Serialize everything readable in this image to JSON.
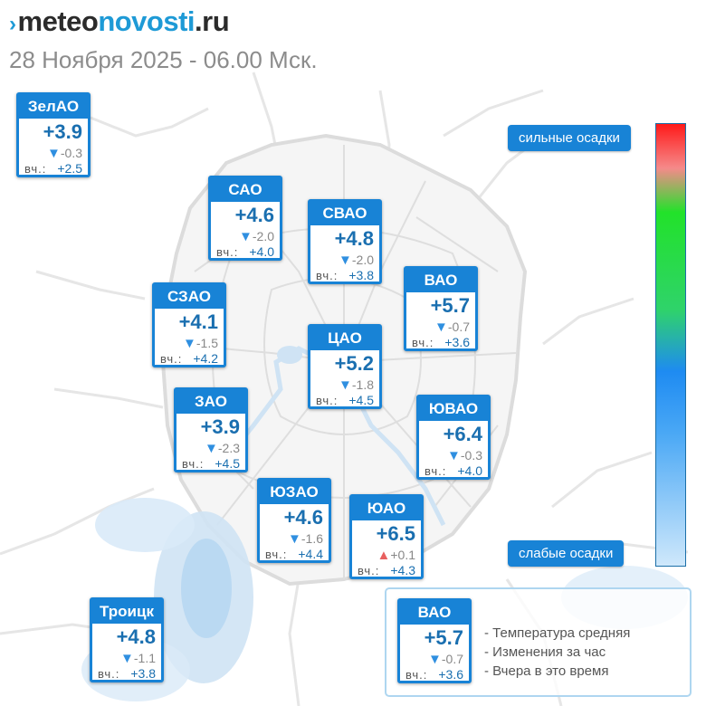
{
  "header": {
    "logo_mark": "›",
    "logo_part1": "meteo",
    "logo_part2": "novosti",
    "logo_part3": ".ru",
    "subtitle": "28 Ноября 2025 - 06.00 Мск."
  },
  "yesterday_label": "вч.:",
  "districts": [
    {
      "name": "ЗелАО",
      "temp": "+3.9",
      "change_arrow": "▼",
      "change": "-0.3",
      "yesterday": "+2.5"
    },
    {
      "name": "САО",
      "temp": "+4.6",
      "change_arrow": "▼",
      "change": "-2.0",
      "yesterday": "+4.0"
    },
    {
      "name": "СВАО",
      "temp": "+4.8",
      "change_arrow": "▼",
      "change": "-2.0",
      "yesterday": "+3.8"
    },
    {
      "name": "ВАО",
      "temp": "+5.7",
      "change_arrow": "▼",
      "change": "-0.7",
      "yesterday": "+3.6"
    },
    {
      "name": "СЗАО",
      "temp": "+4.1",
      "change_arrow": "▼",
      "change": "-1.5",
      "yesterday": "+4.2"
    },
    {
      "name": "ЦАО",
      "temp": "+5.2",
      "change_arrow": "▼",
      "change": "-1.8",
      "yesterday": "+4.5"
    },
    {
      "name": "ЗАО",
      "temp": "+3.9",
      "change_arrow": "▼",
      "change": "-2.3",
      "yesterday": "+4.5"
    },
    {
      "name": "ЮВАО",
      "temp": "+6.4",
      "change_arrow": "▼",
      "change": "-0.3",
      "yesterday": "+4.0"
    },
    {
      "name": "ЮЗАО",
      "temp": "+4.6",
      "change_arrow": "▼",
      "change": "-1.6",
      "yesterday": "+4.4"
    },
    {
      "name": "ЮАО",
      "temp": "+6.5",
      "change_arrow": "▲",
      "change": "+0.1",
      "yesterday": "+4.3"
    },
    {
      "name": "Троицк",
      "temp": "+4.8",
      "change_arrow": "▼",
      "change": "-1.1",
      "yesterday": "+3.8"
    }
  ],
  "scale": {
    "top_label": "сильные осадки",
    "bottom_label": "слабые осадки"
  },
  "legend": {
    "sample": {
      "name": "ВАО",
      "temp": "+5.7",
      "change_arrow": "▼",
      "change": "-0.7",
      "yesterday": "+3.6"
    },
    "items": [
      "- Температура средняя",
      "- Изменения за час",
      "- Вчера в это время"
    ]
  },
  "colors": {
    "accent": "#1883d6",
    "temp_text": "#1a6fb0",
    "arrow_down": "#2f8fe0",
    "arrow_up": "#e8605f",
    "water": "#cfe3f4"
  }
}
